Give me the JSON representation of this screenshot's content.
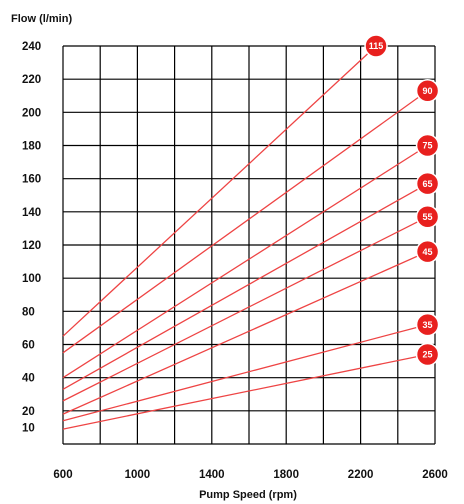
{
  "chart_data": {
    "type": "line",
    "ylabel": "Flow (l/min)",
    "xlabel": "Pump Speed (rpm)",
    "xlim": [
      600,
      2600
    ],
    "ylim": [
      0,
      240
    ],
    "x_ticks": [
      600,
      1000,
      1400,
      1800,
      2200,
      2600
    ],
    "x_tick_labels": [
      "600",
      "1000",
      "1400",
      "1800",
      "2200",
      "2600"
    ],
    "x_gridlines": [
      600,
      800,
      1000,
      1200,
      1400,
      1600,
      1800,
      2000,
      2200,
      2400,
      2600
    ],
    "y_ticks": [
      10,
      20,
      40,
      60,
      80,
      100,
      120,
      140,
      160,
      180,
      200,
      220,
      240
    ],
    "y_tick_labels": [
      "10",
      "20",
      "40",
      "60",
      "80",
      "100",
      "120",
      "140",
      "160",
      "180",
      "200",
      "220",
      "240"
    ],
    "y_gridlines": [
      0,
      20,
      40,
      60,
      80,
      100,
      120,
      140,
      160,
      180,
      200,
      220,
      240
    ],
    "grid": true,
    "series": [
      {
        "name": "115",
        "x": [
          600,
          2283
        ],
        "y": [
          65,
          240
        ]
      },
      {
        "name": "90",
        "x": [
          600,
          2560
        ],
        "y": [
          55,
          213
        ]
      },
      {
        "name": "75",
        "x": [
          600,
          2560
        ],
        "y": [
          40,
          180
        ]
      },
      {
        "name": "65",
        "x": [
          600,
          2560
        ],
        "y": [
          33,
          157
        ]
      },
      {
        "name": "55",
        "x": [
          600,
          2560
        ],
        "y": [
          26,
          137
        ]
      },
      {
        "name": "45",
        "x": [
          600,
          2560
        ],
        "y": [
          18,
          116
        ]
      },
      {
        "name": "35",
        "x": [
          600,
          2560
        ],
        "y": [
          14,
          72
        ]
      },
      {
        "name": "25",
        "x": [
          600,
          2560
        ],
        "y": [
          9,
          54
        ]
      }
    ],
    "colors": {
      "line": "#ee4444",
      "badge_fill": "#e8201e",
      "badge_stroke": "#ffffff",
      "grid": "#000000"
    }
  }
}
